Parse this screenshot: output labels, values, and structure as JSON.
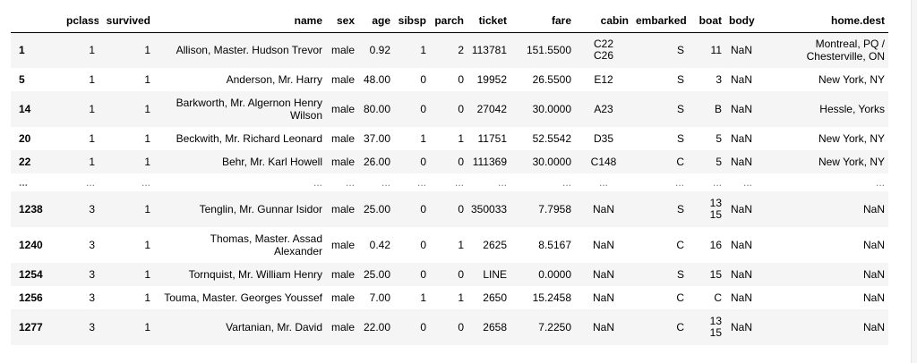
{
  "columns": [
    "",
    "pclass",
    "survived",
    "name",
    "sex",
    "age",
    "sibsp",
    "parch",
    "ticket",
    "fare",
    "cabin",
    "embarked",
    "boat",
    "body",
    "home.dest"
  ],
  "rows": [
    {
      "index": "1",
      "pclass": "1",
      "survived": "1",
      "name": "Allison, Master. Hudson Trevor",
      "sex": "male",
      "age": "0.92",
      "sibsp": "1",
      "parch": "2",
      "ticket": "113781",
      "fare": "151.5500",
      "cabin": [
        "C22",
        "C26"
      ],
      "embarked": "S",
      "boat": [
        "11"
      ],
      "body": "NaN",
      "home_dest": "Montreal, PQ / Chesterville, ON"
    },
    {
      "index": "5",
      "pclass": "1",
      "survived": "1",
      "name": "Anderson, Mr. Harry",
      "sex": "male",
      "age": "48.00",
      "sibsp": "0",
      "parch": "0",
      "ticket": "19952",
      "fare": "26.5500",
      "cabin": [
        "E12"
      ],
      "embarked": "S",
      "boat": [
        "3"
      ],
      "body": "NaN",
      "home_dest": "New York, NY"
    },
    {
      "index": "14",
      "pclass": "1",
      "survived": "1",
      "name": "Barkworth, Mr. Algernon Henry Wilson",
      "sex": "male",
      "age": "80.00",
      "sibsp": "0",
      "parch": "0",
      "ticket": "27042",
      "fare": "30.0000",
      "cabin": [
        "A23"
      ],
      "embarked": "S",
      "boat": [
        "B"
      ],
      "body": "NaN",
      "home_dest": "Hessle, Yorks"
    },
    {
      "index": "20",
      "pclass": "1",
      "survived": "1",
      "name": "Beckwith, Mr. Richard Leonard",
      "sex": "male",
      "age": "37.00",
      "sibsp": "1",
      "parch": "1",
      "ticket": "11751",
      "fare": "52.5542",
      "cabin": [
        "D35"
      ],
      "embarked": "S",
      "boat": [
        "5"
      ],
      "body": "NaN",
      "home_dest": "New York, NY"
    },
    {
      "index": "22",
      "pclass": "1",
      "survived": "1",
      "name": "Behr, Mr. Karl Howell",
      "sex": "male",
      "age": "26.00",
      "sibsp": "0",
      "parch": "0",
      "ticket": "111369",
      "fare": "30.0000",
      "cabin": [
        "C148"
      ],
      "embarked": "C",
      "boat": [
        "5"
      ],
      "body": "NaN",
      "home_dest": "New York, NY"
    },
    {
      "ellipsis": true,
      "index": "...",
      "pclass": "...",
      "survived": "...",
      "name": "...",
      "sex": "...",
      "age": "...",
      "sibsp": "...",
      "parch": "...",
      "ticket": "...",
      "fare": "...",
      "cabin": [
        "..."
      ],
      "embarked": "...",
      "boat": [
        "..."
      ],
      "body": "...",
      "home_dest": "..."
    },
    {
      "index": "1238",
      "pclass": "3",
      "survived": "1",
      "name": "Tenglin, Mr. Gunnar Isidor",
      "sex": "male",
      "age": "25.00",
      "sibsp": "0",
      "parch": "0",
      "ticket": "350033",
      "fare": "7.7958",
      "cabin": [
        "NaN"
      ],
      "embarked": "S",
      "boat": [
        "13",
        "15"
      ],
      "body": "NaN",
      "home_dest": "NaN"
    },
    {
      "index": "1240",
      "pclass": "3",
      "survived": "1",
      "name": "Thomas, Master. Assad Alexander",
      "sex": "male",
      "age": "0.42",
      "sibsp": "0",
      "parch": "1",
      "ticket": "2625",
      "fare": "8.5167",
      "cabin": [
        "NaN"
      ],
      "embarked": "C",
      "boat": [
        "16"
      ],
      "body": "NaN",
      "home_dest": "NaN"
    },
    {
      "index": "1254",
      "pclass": "3",
      "survived": "1",
      "name": "Tornquist, Mr. William Henry",
      "sex": "male",
      "age": "25.00",
      "sibsp": "0",
      "parch": "0",
      "ticket": "LINE",
      "fare": "0.0000",
      "cabin": [
        "NaN"
      ],
      "embarked": "S",
      "boat": [
        "15"
      ],
      "body": "NaN",
      "home_dest": "NaN"
    },
    {
      "index": "1256",
      "pclass": "3",
      "survived": "1",
      "name": "Touma, Master. Georges Youssef",
      "sex": "male",
      "age": "7.00",
      "sibsp": "1",
      "parch": "1",
      "ticket": "2650",
      "fare": "15.2458",
      "cabin": [
        "NaN"
      ],
      "embarked": "C",
      "boat": [
        "C"
      ],
      "body": "NaN",
      "home_dest": "NaN"
    },
    {
      "index": "1277",
      "pclass": "3",
      "survived": "1",
      "name": "Vartanian, Mr. David",
      "sex": "male",
      "age": "22.00",
      "sibsp": "0",
      "parch": "0",
      "ticket": "2658",
      "fare": "7.2250",
      "cabin": [
        "NaN"
      ],
      "embarked": "C",
      "boat": [
        "13",
        "15"
      ],
      "body": "NaN",
      "home_dest": "NaN"
    }
  ]
}
